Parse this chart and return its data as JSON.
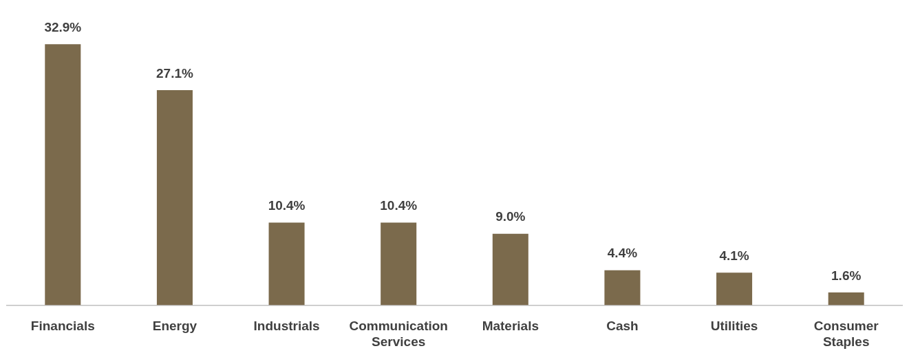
{
  "chart_data": {
    "type": "bar",
    "categories": [
      "Financials",
      "Energy",
      "Industrials",
      "Communication Services",
      "Materials",
      "Cash",
      "Utilities",
      "Consumer Staples"
    ],
    "values": [
      32.9,
      27.1,
      10.4,
      10.4,
      9.0,
      4.4,
      4.1,
      1.6
    ],
    "value_labels": [
      "32.9%",
      "27.1%",
      "10.4%",
      "10.4%",
      "9.0%",
      "4.4%",
      "4.1%",
      "1.6%"
    ],
    "color": "#7b6a4c",
    "grid": false,
    "legend": false
  }
}
